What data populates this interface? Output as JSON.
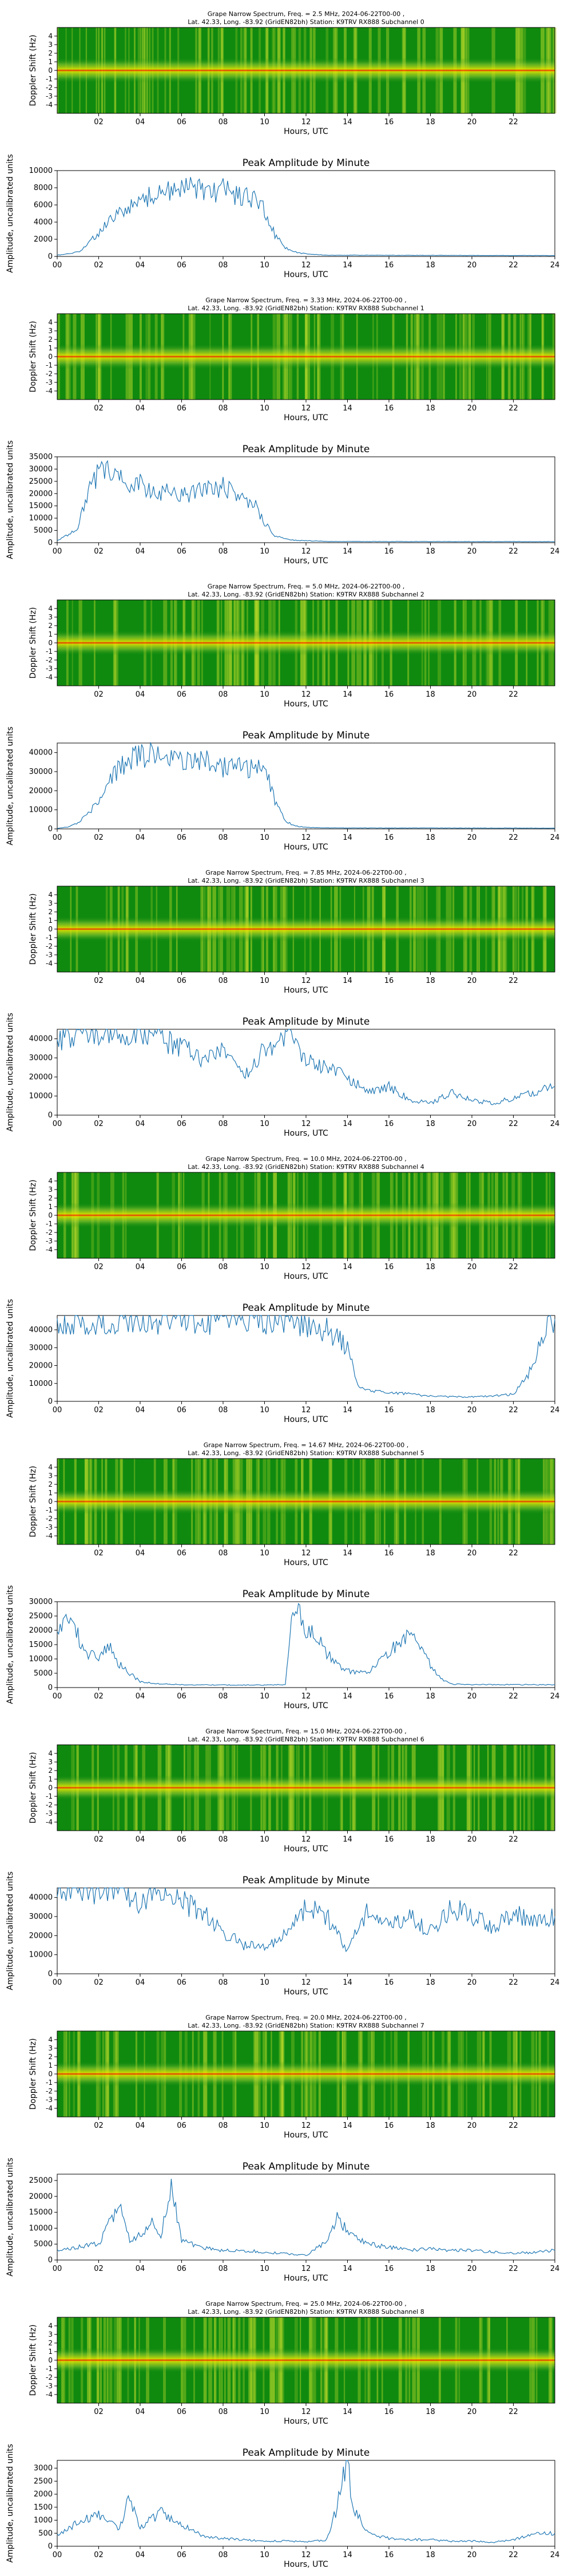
{
  "hour_ticks": [
    "02",
    "04",
    "06",
    "08",
    "10",
    "12",
    "14",
    "16",
    "18",
    "20",
    "22"
  ],
  "amp_ticks_x": [
    "00",
    "02",
    "04",
    "06",
    "08",
    "10",
    "12",
    "14",
    "16",
    "18",
    "20",
    "22",
    "24"
  ],
  "doppler_ticks": [
    "-4",
    "-3",
    "-2",
    "-1",
    "0",
    "1",
    "2",
    "3",
    "4"
  ],
  "labels": {
    "xlabel": "Hours, UTC",
    "doppler_ylabel": "Doppler Shift (Hz)",
    "amp_ylabel": "Amplitude, uncalibrated units",
    "amp_title": "Peak Amplitude by Minute"
  },
  "colors": {
    "line": "#1f77b4",
    "spec_bg": "#0f8a0f",
    "spec_mid": "#e6e600",
    "spec_hot": "#ff2a00"
  },
  "chart_data": [
    {
      "type": "heatmap",
      "title1": "Grape Narrow Spectrum, Freq. = 2.5 MHz, 2024-06-22T00-00 ,",
      "title2": "Lat. 42.33, Long. -83.92 (GridEN82bh) Station: K9TRV RX888 Subchannel 0",
      "xlim": [
        0,
        24
      ],
      "ylim": [
        -5,
        5
      ],
      "xlabel": "Hours, UTC",
      "ylabel": "Doppler Shift (Hz)"
    },
    {
      "type": "line",
      "title": "Peak Amplitude by Minute",
      "xlim": [
        0,
        24
      ],
      "ylim": [
        0,
        10000
      ],
      "yticks": [
        "0",
        "2000",
        "4000",
        "6000",
        "8000",
        "10000"
      ],
      "xlabel": "Hours, UTC",
      "ylabel": "Amplitude, uncalibrated units",
      "x": [
        0,
        0.5,
        1,
        1.5,
        2,
        2.5,
        3,
        3.5,
        4,
        4.5,
        5,
        5.5,
        6,
        6.5,
        7,
        7.5,
        8,
        8.5,
        9,
        9.5,
        10,
        10.5,
        11,
        11.5,
        12,
        13,
        24
      ],
      "values": [
        150,
        300,
        500,
        1500,
        2800,
        4000,
        5000,
        5800,
        6500,
        7000,
        7400,
        7600,
        7800,
        8200,
        7900,
        7500,
        7800,
        7200,
        7000,
        6500,
        5500,
        2500,
        1000,
        500,
        300,
        150,
        100
      ]
    },
    {
      "type": "heatmap",
      "title1": "Grape Narrow Spectrum, Freq. = 3.33 MHz, 2024-06-22T00-00 ,",
      "title2": "Lat. 42.33, Long. -83.92 (GridEN82bh) Station: K9TRV RX888 Subchannel 1",
      "xlim": [
        0,
        24
      ],
      "ylim": [
        -5,
        5
      ],
      "xlabel": "Hours, UTC",
      "ylabel": "Doppler Shift (Hz)"
    },
    {
      "type": "line",
      "title": "Peak Amplitude by Minute",
      "xlim": [
        0,
        24
      ],
      "ylim": [
        0,
        35000
      ],
      "yticks": [
        "0",
        "5000",
        "10000",
        "15000",
        "20000",
        "25000",
        "30000",
        "35000"
      ],
      "xlabel": "Hours, UTC",
      "ylabel": "Amplitude, uncalibrated units",
      "x": [
        0,
        0.5,
        1,
        1.5,
        2,
        2.5,
        3,
        3.5,
        4,
        4.5,
        5,
        5.5,
        6,
        6.5,
        7,
        7.5,
        8,
        8.5,
        9,
        9.5,
        10,
        10.5,
        11,
        11.5,
        12,
        13,
        24
      ],
      "values": [
        1000,
        3000,
        6000,
        22000,
        28000,
        30000,
        26000,
        22000,
        24000,
        21000,
        20000,
        21000,
        19000,
        20000,
        22000,
        21000,
        23000,
        20000,
        18000,
        16000,
        8000,
        3000,
        1500,
        1000,
        800,
        500,
        400
      ]
    },
    {
      "type": "heatmap",
      "title1": "Grape Narrow Spectrum, Freq. = 5.0 MHz, 2024-06-22T00-00 ,",
      "title2": "Lat. 42.33, Long. -83.92 (GridEN82bh) Station: K9TRV RX888 Subchannel 2",
      "xlim": [
        0,
        24
      ],
      "ylim": [
        -5,
        5
      ],
      "xlabel": "Hours, UTC",
      "ylabel": "Doppler Shift (Hz)"
    },
    {
      "type": "line",
      "title": "Peak Amplitude by Minute",
      "xlim": [
        0,
        24
      ],
      "ylim": [
        0,
        45000
      ],
      "yticks": [
        "0",
        "10000",
        "20000",
        "30000",
        "40000"
      ],
      "xlabel": "Hours, UTC",
      "ylabel": "Amplitude, uncalibrated units",
      "x": [
        0,
        0.5,
        1,
        1.5,
        2,
        2.5,
        3,
        3.5,
        4,
        4.5,
        5,
        5.5,
        6,
        6.5,
        7,
        7.5,
        8,
        8.5,
        9,
        9.5,
        10,
        10.5,
        11,
        11.5,
        12,
        13,
        24
      ],
      "values": [
        300,
        1000,
        3000,
        8000,
        15000,
        25000,
        32000,
        36000,
        38000,
        39000,
        37000,
        38000,
        36000,
        35000,
        37000,
        34000,
        32000,
        36000,
        33000,
        31000,
        33000,
        15000,
        4000,
        1500,
        800,
        500,
        400
      ]
    },
    {
      "type": "heatmap",
      "title1": "Grape Narrow Spectrum, Freq. = 7.85 MHz, 2024-06-22T00-00 ,",
      "title2": "Lat. 42.33, Long. -83.92 (GridEN82bh) Station: K9TRV RX888 Subchannel 3",
      "xlim": [
        0,
        24
      ],
      "ylim": [
        -5,
        5
      ],
      "xlabel": "Hours, UTC",
      "ylabel": "Doppler Shift (Hz)"
    },
    {
      "type": "line",
      "title": "Peak Amplitude by Minute",
      "xlim": [
        0,
        24
      ],
      "ylim": [
        0,
        45000
      ],
      "yticks": [
        "0",
        "10000",
        "20000",
        "30000",
        "40000"
      ],
      "xlabel": "Hours, UTC",
      "ylabel": "Amplitude, uncalibrated units",
      "x": [
        0,
        1,
        2,
        3,
        4,
        5,
        6,
        7,
        8,
        9,
        10,
        11,
        12,
        13,
        14,
        15,
        16,
        17,
        18,
        19,
        20,
        21,
        22,
        23,
        24
      ],
      "values": [
        40000,
        42000,
        43000,
        41000,
        42000,
        40000,
        35000,
        30000,
        33000,
        20000,
        35000,
        43000,
        30000,
        25000,
        20000,
        12000,
        15000,
        8000,
        6000,
        12000,
        8000,
        6000,
        9000,
        12000,
        15000
      ]
    },
    {
      "type": "heatmap",
      "title1": "Grape Narrow Spectrum, Freq. = 10.0 MHz, 2024-06-22T00-00 ,",
      "title2": "Lat. 42.33, Long. -83.92 (GridEN82bh) Station: K9TRV RX888 Subchannel 4",
      "xlim": [
        0,
        24
      ],
      "ylim": [
        -5,
        5
      ],
      "xlabel": "Hours, UTC",
      "ylabel": "Doppler Shift (Hz)"
    },
    {
      "type": "line",
      "title": "Peak Amplitude by Minute",
      "xlim": [
        0,
        24
      ],
      "ylim": [
        0,
        48000
      ],
      "yticks": [
        "0",
        "10000",
        "20000",
        "30000",
        "40000"
      ],
      "xlabel": "Hours, UTC",
      "ylabel": "Amplitude, uncalibrated units",
      "x": [
        0,
        1,
        2,
        3,
        4,
        5,
        6,
        7,
        8,
        9,
        10,
        11,
        12,
        13,
        14,
        14.5,
        15,
        16,
        17,
        18,
        19,
        20,
        21,
        22,
        23,
        23.5,
        24
      ],
      "values": [
        45000,
        45000,
        45000,
        45000,
        45000,
        45000,
        45000,
        45000,
        45000,
        45000,
        45000,
        45000,
        43000,
        40000,
        30000,
        10000,
        6000,
        5000,
        4000,
        3000,
        2500,
        2500,
        3000,
        4000,
        20000,
        40000,
        46000
      ]
    },
    {
      "type": "heatmap",
      "title1": "Grape Narrow Spectrum, Freq. = 14.67 MHz, 2024-06-22T00-00 ,",
      "title2": "Lat. 42.33, Long. -83.92 (GridEN82bh) Station: K9TRV RX888 Subchannel 5",
      "xlim": [
        0,
        24
      ],
      "ylim": [
        -5,
        5
      ],
      "xlabel": "Hours, UTC",
      "ylabel": "Doppler Shift (Hz)"
    },
    {
      "type": "line",
      "title": "Peak Amplitude by Minute",
      "xlim": [
        0,
        24
      ],
      "ylim": [
        0,
        30000
      ],
      "yticks": [
        "0",
        "5000",
        "10000",
        "15000",
        "20000",
        "25000",
        "30000"
      ],
      "xlabel": "Hours, UTC",
      "ylabel": "Amplitude, uncalibrated units",
      "x": [
        0,
        0.5,
        1,
        1.5,
        2,
        2.5,
        3,
        3.5,
        4,
        5,
        6,
        7,
        8,
        9,
        10,
        11,
        11.3,
        11.7,
        12,
        12.5,
        13,
        13.5,
        14,
        15,
        16,
        16.5,
        17,
        17.5,
        18,
        18.5,
        19,
        20,
        24
      ],
      "values": [
        20000,
        24000,
        18000,
        12000,
        10000,
        15000,
        8000,
        5000,
        2000,
        1200,
        1000,
        900,
        900,
        900,
        900,
        1000,
        25000,
        28000,
        20000,
        18000,
        12000,
        8000,
        6000,
        5000,
        12000,
        16000,
        18000,
        14000,
        8000,
        3000,
        1200,
        1000,
        1000
      ]
    },
    {
      "type": "heatmap",
      "title1": "Grape Narrow Spectrum, Freq. = 15.0 MHz, 2024-06-22T00-00 ,",
      "title2": "Lat. 42.33, Long. -83.92 (GridEN82bh) Station: K9TRV RX888 Subchannel 6",
      "xlim": [
        0,
        24
      ],
      "ylim": [
        -5,
        5
      ],
      "xlabel": "Hours, UTC",
      "ylabel": "Doppler Shift (Hz)"
    },
    {
      "type": "line",
      "title": "Peak Amplitude by Minute",
      "xlim": [
        0,
        24
      ],
      "ylim": [
        0,
        45000
      ],
      "yticks": [
        "0",
        "10000",
        "20000",
        "30000",
        "40000"
      ],
      "xlabel": "Hours, UTC",
      "ylabel": "Amplitude, uncalibrated units",
      "x": [
        0,
        1,
        2,
        3,
        4,
        5,
        6,
        7,
        8,
        9,
        10,
        11,
        12,
        13,
        14,
        15,
        16,
        17,
        18,
        19,
        20,
        21,
        22,
        23,
        24
      ],
      "values": [
        44000,
        44000,
        44000,
        43000,
        38000,
        44000,
        38000,
        32000,
        22000,
        15000,
        14000,
        20000,
        35000,
        30000,
        12000,
        35000,
        25000,
        30000,
        22000,
        35000,
        30000,
        25000,
        32000,
        28000,
        30000
      ]
    },
    {
      "type": "heatmap",
      "title1": "Grape Narrow Spectrum, Freq. = 20.0 MHz, 2024-06-22T00-00 ,",
      "title2": "Lat. 42.33, Long. -83.92 (GridEN82bh) Station: K9TRV RX888 Subchannel 7",
      "xlim": [
        0,
        24
      ],
      "ylim": [
        -5,
        5
      ],
      "xlabel": "Hours, UTC",
      "ylabel": "Doppler Shift (Hz)"
    },
    {
      "type": "line",
      "title": "Peak Amplitude by Minute",
      "xlim": [
        0,
        24
      ],
      "ylim": [
        0,
        27000
      ],
      "yticks": [
        "0",
        "5000",
        "10000",
        "15000",
        "20000",
        "25000"
      ],
      "xlabel": "Hours, UTC",
      "ylabel": "Amplitude, uncalibrated units",
      "x": [
        0,
        1,
        2,
        2.5,
        3,
        3.5,
        4,
        4.5,
        5,
        5.5,
        6,
        7,
        8,
        9,
        10,
        11,
        12,
        13,
        13.5,
        14,
        15,
        16,
        17,
        18,
        19,
        20,
        21,
        22,
        23,
        24
      ],
      "values": [
        3000,
        4000,
        5000,
        12000,
        17000,
        6000,
        8000,
        12000,
        7000,
        25000,
        6000,
        4000,
        3000,
        3000,
        2500,
        2000,
        1500,
        6000,
        13000,
        9000,
        5000,
        4000,
        3000,
        3500,
        3000,
        3000,
        2500,
        2000,
        2500,
        3000
      ]
    },
    {
      "type": "heatmap",
      "title1": "Grape Narrow Spectrum, Freq. = 25.0 MHz, 2024-06-22T00-00 ,",
      "title2": "Lat. 42.33, Long. -83.92 (GridEN82bh) Station: K9TRV RX888 Subchannel 8",
      "xlim": [
        0,
        24
      ],
      "ylim": [
        -5,
        5
      ],
      "xlabel": "Hours, UTC",
      "ylabel": "Doppler Shift (Hz)"
    },
    {
      "type": "line",
      "title": "Peak Amplitude by Minute",
      "xlim": [
        0,
        24
      ],
      "ylim": [
        0,
        3300
      ],
      "yticks": [
        "0",
        "500",
        "1000",
        "1500",
        "2000",
        "2500",
        "3000"
      ],
      "xlabel": "Hours, UTC",
      "ylabel": "Amplitude, uncalibrated units",
      "x": [
        0,
        1,
        2,
        3,
        3.5,
        4,
        5,
        6,
        7,
        8,
        9,
        10,
        11,
        12,
        13,
        13.5,
        13.8,
        14,
        14.3,
        15,
        16,
        17,
        18,
        19,
        20,
        21,
        22,
        23,
        24
      ],
      "values": [
        400,
        900,
        1200,
        700,
        1900,
        700,
        1300,
        800,
        400,
        300,
        250,
        200,
        200,
        180,
        250,
        1500,
        2800,
        3100,
        1500,
        500,
        300,
        250,
        250,
        200,
        200,
        150,
        250,
        450,
        500
      ]
    }
  ]
}
